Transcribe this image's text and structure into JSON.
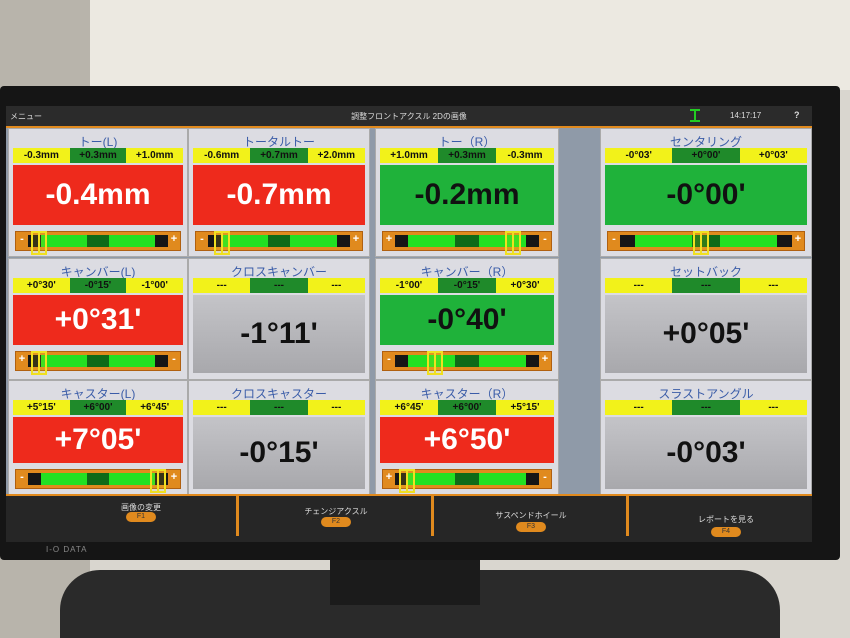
{
  "topbar": {
    "menu_label": "メニュー",
    "title": "調整フロントアクスル 2Dの画像",
    "time": "14:17:17",
    "help": "?"
  },
  "colors": {
    "out_of_range": "#ee2a1c",
    "in_range": "#1fb23a",
    "no_spec": "#b8b8bc",
    "accent": "#e08a1e",
    "range_limit": "#f2f21a"
  },
  "panels": [
    {
      "title": "トー(L)",
      "ranges": [
        "-0.3mm",
        "+0.3mm",
        "+1.0mm"
      ],
      "value": "-0.4mm",
      "state": "red",
      "gauge": {
        "left": "-",
        "right": "+",
        "marker": 0.08
      }
    },
    {
      "title": "トータルトー",
      "ranges": [
        "-0.6mm",
        "+0.7mm",
        "+2.0mm"
      ],
      "value": "-0.7mm",
      "state": "red",
      "gauge": {
        "left": "-",
        "right": "+",
        "marker": 0.1
      }
    },
    {
      "title": "トー（R）",
      "ranges": [
        "+1.0mm",
        "+0.3mm",
        "-0.3mm"
      ],
      "value": "-0.2mm",
      "state": "green",
      "gauge": {
        "left": "+",
        "right": "-",
        "marker": 0.82
      }
    },
    {
      "title": "センタリング",
      "ranges": [
        "-0°03'",
        "+0°00'",
        "+0°03'"
      ],
      "value": "-0°00'",
      "state": "green",
      "gauge": {
        "left": "-",
        "right": "+",
        "marker": 0.47
      }
    },
    {
      "title": "キャンバー(L)",
      "ranges": [
        "+0°30'",
        "-0°15'",
        "-1°00'"
      ],
      "value": "+0°31'",
      "state": "red",
      "gauge": {
        "left": "+",
        "right": "-",
        "marker": 0.08
      }
    },
    {
      "title": "クロスキャンバー",
      "ranges": [
        "---",
        "---",
        "---"
      ],
      "value": "-1°11'",
      "state": "gray"
    },
    {
      "title": "キャンバー（R）",
      "ranges": [
        "-1°00'",
        "-0°15'",
        "+0°30'"
      ],
      "value": "-0°40'",
      "state": "green",
      "gauge": {
        "left": "-",
        "right": "+",
        "marker": 0.28
      }
    },
    {
      "title": "セットバック",
      "ranges": [
        "---",
        "---",
        "---"
      ],
      "value": "+0°05'",
      "state": "gray"
    },
    {
      "title": "キャスター(L)",
      "ranges": [
        "+5°15'",
        "+6°00'",
        "+6°45'"
      ],
      "value": "+7°05'",
      "state": "red",
      "gauge": {
        "left": "-",
        "right": "+",
        "marker": 0.93
      }
    },
    {
      "title": "クロスキャスター",
      "ranges": [
        "---",
        "---",
        "---"
      ],
      "value": "-0°15'",
      "state": "gray"
    },
    {
      "title": "キャスター（R）",
      "ranges": [
        "+6°45'",
        "+6°00'",
        "+5°15'"
      ],
      "value": "+6°50'",
      "state": "red",
      "gauge": {
        "left": "+",
        "right": "-",
        "marker": 0.08
      }
    },
    {
      "title": "スラストアングル",
      "ranges": [
        "---",
        "---",
        "---"
      ],
      "value": "-0°03'",
      "state": "gray"
    }
  ],
  "footer": [
    {
      "label": "画像の変更",
      "key": "F1"
    },
    {
      "label": "チェンジアクスル",
      "key": "F2"
    },
    {
      "label": "サスペンドホイール",
      "key": "F3"
    },
    {
      "label": "レポートを見る",
      "key": "F4"
    }
  ],
  "monitor_brand": "I-O DATA"
}
